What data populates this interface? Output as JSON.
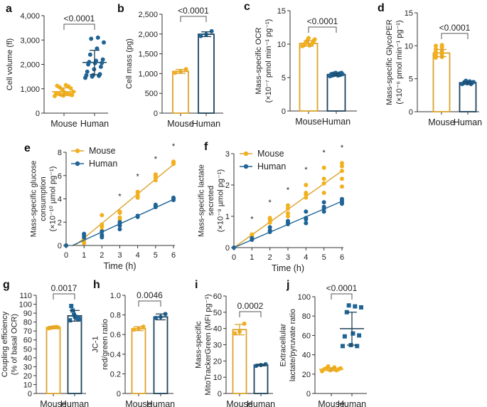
{
  "colors": {
    "mouse": "#f2b01e",
    "mouse_line": "#dca22a",
    "human": "#1f6496",
    "human_bar": "#1e4258",
    "axis": "#333333"
  },
  "chart_data": [
    {
      "panel": "a",
      "type": "scatter",
      "ylabel": [
        "Cell volume (fl)"
      ],
      "ylim": [
        0,
        4000
      ],
      "yticks": [
        0,
        1000,
        2000,
        3000,
        4000
      ],
      "ytick_labels": [
        "0",
        "1,000",
        "2,000",
        "3,000",
        "4,000"
      ],
      "categories": [
        "Mouse",
        "Human"
      ],
      "pvalue": "<0.0001",
      "series": [
        {
          "name": "Mouse",
          "mean": 880,
          "sd": 155,
          "points": [
            700,
            720,
            740,
            760,
            770,
            790,
            800,
            820,
            850,
            880,
            950,
            1020,
            1060,
            1100,
            1120,
            1150
          ]
        },
        {
          "name": "Human",
          "mean": 2080,
          "sd": 500,
          "points": [
            1450,
            1500,
            1530,
            1550,
            1560,
            1600,
            1700,
            1800,
            1900,
            2000,
            2050,
            2060,
            2100,
            2150,
            2200,
            2400,
            2650,
            2900,
            3050,
            3100
          ]
        }
      ]
    },
    {
      "panel": "b",
      "type": "bar",
      "ylabel": [
        "Cell mass (pg)"
      ],
      "ylim": [
        0,
        2500
      ],
      "yticks": [
        0,
        500,
        1000,
        1500,
        2000,
        2500
      ],
      "ytick_labels": [
        "0",
        "500",
        "1,000",
        "1,500",
        "2,000",
        "2,500"
      ],
      "categories": [
        "Mouse",
        "Human"
      ],
      "pvalue": "<0.0001",
      "series": [
        {
          "name": "Mouse",
          "mean": 1055,
          "sd": 50,
          "points": [
            1020,
            1050,
            1110
          ]
        },
        {
          "name": "Human",
          "mean": 1995,
          "sd": 60,
          "points": [
            1950,
            1990,
            2070
          ]
        }
      ]
    },
    {
      "panel": "c",
      "type": "bar",
      "ylabel": [
        "Mass-specific OCR",
        "(×10⁻⁷ pmol min⁻¹ pg⁻¹)"
      ],
      "ylim": [
        0,
        15
      ],
      "yticks": [
        0,
        5,
        10,
        15
      ],
      "ytick_labels": [
        "0",
        "5",
        "10",
        "15"
      ],
      "categories": [
        "Mouse",
        "Human"
      ],
      "pvalue": "<0.0001",
      "series": [
        {
          "name": "Mouse",
          "mean": 10.1,
          "sd": 0.4,
          "points": [
            9.7,
            9.8,
            9.8,
            9.9,
            10.0,
            10.0,
            10.1,
            10.2,
            10.3,
            10.5,
            10.6,
            10.7,
            10.9
          ]
        },
        {
          "name": "Human",
          "mean": 5.45,
          "sd": 0.15,
          "points": [
            5.2,
            5.3,
            5.3,
            5.4,
            5.4,
            5.5,
            5.5,
            5.5,
            5.6,
            5.6,
            5.7,
            5.7
          ]
        }
      ]
    },
    {
      "panel": "d",
      "type": "bar",
      "ylabel": [
        "Mass-specific GlycoPER",
        "(×10⁻⁶ pmol min⁻¹ pg⁻¹)"
      ],
      "ylim": [
        0,
        15
      ],
      "yticks": [
        0,
        5,
        10,
        15
      ],
      "ytick_labels": [
        "0",
        "5",
        "10",
        "15"
      ],
      "categories": [
        "Mouse",
        "Human"
      ],
      "pvalue": "<0.0001",
      "series": [
        {
          "name": "Mouse",
          "mean": 8.9,
          "sd": 0.55,
          "points": [
            8.2,
            8.3,
            8.4,
            8.5,
            8.6,
            8.8,
            8.9,
            9.0,
            9.1,
            9.3,
            9.5,
            9.8,
            10.0,
            10.1
          ]
        },
        {
          "name": "Human",
          "mean": 4.4,
          "sd": 0.15,
          "points": [
            4.2,
            4.2,
            4.3,
            4.3,
            4.4,
            4.4,
            4.5,
            4.5,
            4.6,
            4.7
          ]
        }
      ]
    },
    {
      "panel": "e",
      "type": "line",
      "xlabel": "Time (h)",
      "ylabel": [
        "Mass-specific glucose",
        "consumption",
        "(×10⁻¹⁰ µmol pg⁻¹)"
      ],
      "xlim": [
        0,
        6
      ],
      "ylim": [
        0,
        8
      ],
      "xticks": [
        0,
        1,
        2,
        3,
        4,
        5,
        6
      ],
      "xtick_labels": [
        "0",
        "1",
        "2",
        "3",
        "4",
        "5",
        "6"
      ],
      "yticks": [
        0,
        2,
        4,
        6,
        8
      ],
      "ytick_labels": [
        "0",
        "2",
        "4",
        "6",
        "8"
      ],
      "legend": "top-left",
      "significance_mark": "*",
      "significant_x": [
        3,
        4,
        5,
        6
      ],
      "series": [
        {
          "name": "Mouse",
          "fit_line": [
            [
              0.5,
              0
            ],
            [
              6,
              6.95
            ]
          ],
          "points": [
            [
              0,
              [
                0,
                0
              ]
            ],
            [
              1,
              [
                0.2,
                0.3,
                0.5,
                0.6
              ]
            ],
            [
              2,
              [
                0.8,
                1.3,
                1.6,
                1.8,
                2.6
              ]
            ],
            [
              3,
              [
                2.2,
                2.4,
                2.8,
                2.9
              ]
            ],
            [
              4,
              [
                4.1,
                4.3,
                4.5,
                4.6
              ]
            ],
            [
              5,
              [
                5.6,
                5.8,
                6.0,
                6.1
              ]
            ],
            [
              6,
              [
                7.0,
                7.1,
                7.2
              ]
            ]
          ]
        },
        {
          "name": "Human",
          "fit_line": [
            [
              0.35,
              0
            ],
            [
              6,
              3.95
            ]
          ],
          "points": [
            [
              0,
              [
                0,
                0
              ]
            ],
            [
              1,
              [
                0.7,
                0.9,
                1.0
              ]
            ],
            [
              2,
              [
                0.7,
                0.9,
                1.2
              ]
            ],
            [
              3,
              [
                1.4,
                1.7,
                1.9,
                2.0
              ]
            ],
            [
              4,
              [
                2.45,
                2.55
              ]
            ],
            [
              5,
              [
                3.3,
                3.4,
                3.5
              ]
            ],
            [
              6,
              [
                3.9,
                4.0,
                4.1
              ]
            ]
          ]
        }
      ]
    },
    {
      "panel": "f",
      "type": "line",
      "xlabel": "Time (h)",
      "ylabel": [
        "Mass-specific lactate",
        "secreted",
        "(×10⁻⁹ µmol pg⁻¹)"
      ],
      "xlim": [
        0,
        6
      ],
      "ylim": [
        0,
        3
      ],
      "xticks": [
        0,
        1,
        2,
        3,
        4,
        5,
        6
      ],
      "xtick_labels": [
        "0",
        "1",
        "2",
        "3",
        "4",
        "5",
        "6"
      ],
      "yticks": [
        0,
        1,
        2,
        3
      ],
      "ytick_labels": [
        "0",
        "1",
        "2",
        "3"
      ],
      "legend": "top-left",
      "significance_mark": "*",
      "significant_x": [
        1,
        2,
        3,
        4,
        5,
        6
      ],
      "series": [
        {
          "name": "Mouse",
          "fit_line": [
            [
              0,
              0
            ],
            [
              6,
              2.45
            ]
          ],
          "points": [
            [
              0,
              [
                0
              ]
            ],
            [
              1,
              [
                0.35,
                0.4,
                0.42
              ]
            ],
            [
              2,
              [
                0.65,
                0.8,
                0.9,
                0.95
              ]
            ],
            [
              3,
              [
                1.0,
                1.1,
                1.25,
                1.35
              ]
            ],
            [
              4,
              [
                1.6,
                1.7,
                1.75,
                2.0
              ]
            ],
            [
              5,
              [
                1.75,
                2.05,
                2.2,
                2.55
              ]
            ],
            [
              6,
              [
                1.95,
                2.2,
                2.45,
                2.6,
                2.7
              ]
            ]
          ]
        },
        {
          "name": "Human",
          "fit_line": [
            [
              0,
              0
            ],
            [
              6,
              1.48
            ]
          ],
          "points": [
            [
              0,
              [
                0
              ]
            ],
            [
              1,
              [
                0.25,
                0.3
              ]
            ],
            [
              2,
              [
                0.5,
                0.55,
                0.65
              ]
            ],
            [
              3,
              [
                0.75,
                0.8,
                0.85
              ]
            ],
            [
              4,
              [
                0.78,
                0.9,
                0.95,
                1.15
              ]
            ],
            [
              5,
              [
                1.15,
                1.25,
                1.3,
                1.45
              ]
            ],
            [
              6,
              [
                1.4,
                1.45,
                1.5,
                1.55
              ]
            ]
          ]
        }
      ]
    },
    {
      "panel": "g",
      "type": "bar",
      "ylabel": [
        "Coupling efficiency",
        "(% of basal OCR)"
      ],
      "ylim": [
        0,
        110
      ],
      "yticks": [
        0,
        10,
        20,
        30,
        40,
        50,
        60,
        70,
        80,
        90,
        100,
        110
      ],
      "ytick_labels": [
        "0",
        "10",
        "20",
        "30",
        "40",
        "50",
        "60",
        "70",
        "80",
        "90",
        "100",
        "110"
      ],
      "categories": [
        "Mouse",
        "Human"
      ],
      "pvalue": "0.0017",
      "series": [
        {
          "name": "Mouse",
          "mean": 74,
          "sd": 1,
          "points": [
            73,
            73.5,
            74,
            74,
            74.5,
            74
          ]
        },
        {
          "name": "Human",
          "mean": 87,
          "sd": 6,
          "points": [
            82,
            83,
            84,
            85,
            86,
            88,
            93,
            98
          ]
        }
      ]
    },
    {
      "panel": "h",
      "type": "bar",
      "ylabel": [
        "JC-1",
        "red/green ratio"
      ],
      "ylim": [
        0,
        1.0
      ],
      "yticks": [
        0,
        0.2,
        0.4,
        0.6,
        0.8,
        1.0
      ],
      "ytick_labels": [
        "0",
        "0.2",
        "0.4",
        "0.6",
        "0.8",
        "1.0"
      ],
      "categories": [
        "Mouse",
        "Human"
      ],
      "pvalue": "0.0046",
      "series": [
        {
          "name": "Mouse",
          "mean": 0.66,
          "sd": 0.02,
          "points": [
            0.65,
            0.66,
            0.68
          ]
        },
        {
          "name": "Human",
          "mean": 0.78,
          "sd": 0.03,
          "points": [
            0.77,
            0.78,
            0.81
          ]
        }
      ]
    },
    {
      "panel": "i",
      "type": "bar",
      "ylabel": [
        "Mass-specific",
        "MitoTrackerGreen (MFI pg⁻¹)"
      ],
      "ylim": [
        0,
        60
      ],
      "yticks": [
        0,
        10,
        20,
        30,
        40,
        50,
        60
      ],
      "ytick_labels": [
        "0",
        "10",
        "20",
        "30",
        "40",
        "50",
        "60"
      ],
      "categories": [
        "Mouse",
        "Human"
      ],
      "pvalue": "0.0002",
      "series": [
        {
          "name": "Mouse",
          "mean": 39.3,
          "sd": 3.2,
          "points": [
            37,
            38,
            43
          ]
        },
        {
          "name": "Human",
          "mean": 17.5,
          "sd": 0.5,
          "points": [
            17,
            17.5,
            18
          ]
        }
      ]
    },
    {
      "panel": "j",
      "type": "scatter",
      "ylabel": [
        "Extracellular",
        "lactate/pyruvate ratio"
      ],
      "ylim": [
        0,
        100
      ],
      "yticks": [
        0,
        20,
        40,
        60,
        80,
        100
      ],
      "ytick_labels": [
        "0",
        "20",
        "40",
        "60",
        "80",
        "100"
      ],
      "categories": [
        "Mouse",
        "Human"
      ],
      "pvalue": "<0.0001",
      "series": [
        {
          "name": "Mouse",
          "mean": 25,
          "sd": 1.5,
          "points": [
            23,
            24,
            24,
            25,
            25,
            25,
            26,
            26,
            27,
            28
          ]
        },
        {
          "name": "Human",
          "mean": 67,
          "sd": 17,
          "points": [
            49,
            49,
            50,
            59,
            60,
            62,
            84,
            89,
            90,
            91
          ]
        }
      ]
    }
  ]
}
